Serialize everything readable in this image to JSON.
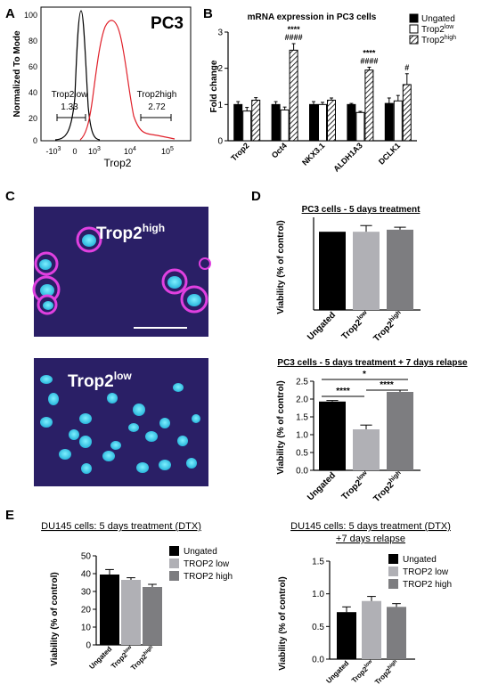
{
  "panels": {
    "A": {
      "letter": "A",
      "label": "PC3",
      "ylabel": "Normalized To Mode",
      "xlabel": "Trop2",
      "gate_low": {
        "name": "Trop2low",
        "value": "1.33"
      },
      "gate_high": {
        "name": "Trop2high",
        "value": "2.72"
      }
    },
    "B": {
      "letter": "B",
      "title": "mRNA expression in PC3 cells",
      "ylabel": "Fold change",
      "legend": [
        "Ungated",
        "Trop2",
        "Trop2"
      ],
      "legend_sup": [
        "",
        "low",
        "high"
      ],
      "annotations": [
        {
          "gene": "Oct4",
          "lines": [
            "****",
            "####"
          ]
        },
        {
          "gene": "ALDH1A3",
          "lines": [
            "****",
            "####"
          ]
        },
        {
          "gene": "DCLK1",
          "lines": [
            "#"
          ]
        }
      ]
    },
    "C": {
      "letter": "C",
      "image_high_label": "Trop2",
      "image_high_sup": "high",
      "image_low_label": "Trop2",
      "image_low_sup": "low"
    },
    "D": {
      "letter": "D",
      "top_title": "PC3 cells - 5 days treatment",
      "bottom_title": "PC3 cells - 5 days treatment + 7 days relapse",
      "ylabel": "Viability (% of control)",
      "cat_main": [
        "Ungated",
        "Trop2",
        "Trop2"
      ],
      "cat_sup": [
        "",
        "low",
        "high"
      ],
      "sig": [
        "****",
        "****",
        "*"
      ]
    },
    "E": {
      "letter": "E",
      "left_title": "DU145 cells: 5 days treatment (DTX)",
      "right_title_1": "DU145 cells: 5 days treatment (DTX)",
      "right_title_2": "+7 days relapse",
      "ylabel": "Viability (% of control)",
      "legend": [
        "Ungated",
        "TROP2 low",
        "TROP2 high"
      ],
      "cat_main": [
        "Ungated",
        "Trop2",
        "Trop2"
      ],
      "cat_sup": [
        "",
        "low",
        "high"
      ]
    }
  },
  "colors": {
    "ungated": "#000000",
    "low": "#b0b0b5",
    "high": "#7d7d80",
    "flow_red": "#e0202a",
    "flow_black": "#000000",
    "micro_bg": "#2a1f66",
    "nuclei": "#28c8e8",
    "membrane": "#e040e0"
  },
  "chart_data": [
    {
      "id": "B",
      "type": "bar",
      "title": "mRNA expression in PC3 cells",
      "ylabel": "Fold change",
      "categories": [
        "Trop2",
        "Oct4",
        "NKX3.1",
        "ALDH1A3",
        "DCLK1"
      ],
      "ylim": [
        0,
        3
      ],
      "yticks": [
        0,
        1,
        2,
        3
      ],
      "series": [
        {
          "name": "Ungated",
          "values": [
            1.0,
            1.0,
            1.0,
            1.0,
            1.03
          ],
          "errors": [
            0.08,
            0.08,
            0.08,
            0.03,
            0.15
          ]
        },
        {
          "name": "Trop2 low",
          "values": [
            0.82,
            0.85,
            1.0,
            0.78,
            1.1
          ],
          "errors": [
            0.1,
            0.08,
            0.06,
            0.03,
            0.15
          ]
        },
        {
          "name": "Trop2 high",
          "values": [
            1.12,
            2.5,
            1.12,
            1.95,
            1.55
          ],
          "errors": [
            0.07,
            0.18,
            0.06,
            0.08,
            0.3
          ]
        }
      ]
    },
    {
      "id": "D-top",
      "type": "bar",
      "title": "PC3 cells - 5 days treatment",
      "ylabel": "Viability (% of control)",
      "categories": [
        "Ungated",
        "Trop2 low",
        "Trop2 high"
      ],
      "values": [
        38,
        38,
        39
      ],
      "errors": [
        0,
        3,
        1.2
      ],
      "ylim": [
        0,
        45
      ]
    },
    {
      "id": "D-bottom",
      "type": "bar",
      "title": "PC3 cells - 5 days treatment + 7 days relapse",
      "ylabel": "Viability (% of control)",
      "categories": [
        "Ungated",
        "Trop2 low",
        "Trop2 high"
      ],
      "values": [
        1.93,
        1.15,
        2.2
      ],
      "errors": [
        0.03,
        0.12,
        0.05
      ],
      "ylim": [
        0,
        2.5
      ],
      "yticks": [
        0.0,
        0.5,
        1.0,
        1.5,
        2.0,
        2.5
      ]
    },
    {
      "id": "E-left",
      "type": "bar",
      "title": "DU145 cells: 5 days treatment (DTX)",
      "ylabel": "Viability (% of control)",
      "categories": [
        "Ungated",
        "Trop2 low",
        "Trop2 high"
      ],
      "values": [
        39.5,
        36.5,
        32.5
      ],
      "errors": [
        2.8,
        1.2,
        1.5
      ],
      "ylim": [
        0,
        50
      ],
      "yticks": [
        0,
        10,
        20,
        30,
        40,
        50
      ]
    },
    {
      "id": "E-right",
      "type": "bar",
      "title": "DU145 cells: 5 days treatment (DTX) +7 days relapse",
      "ylabel": "Viability (% of control)",
      "categories": [
        "Ungated",
        "Trop2 low",
        "Trop2 high"
      ],
      "values": [
        0.72,
        0.89,
        0.8
      ],
      "errors": [
        0.08,
        0.07,
        0.05
      ],
      "ylim": [
        0,
        1.5
      ],
      "yticks": [
        0.0,
        0.5,
        1.0,
        1.5
      ]
    }
  ]
}
